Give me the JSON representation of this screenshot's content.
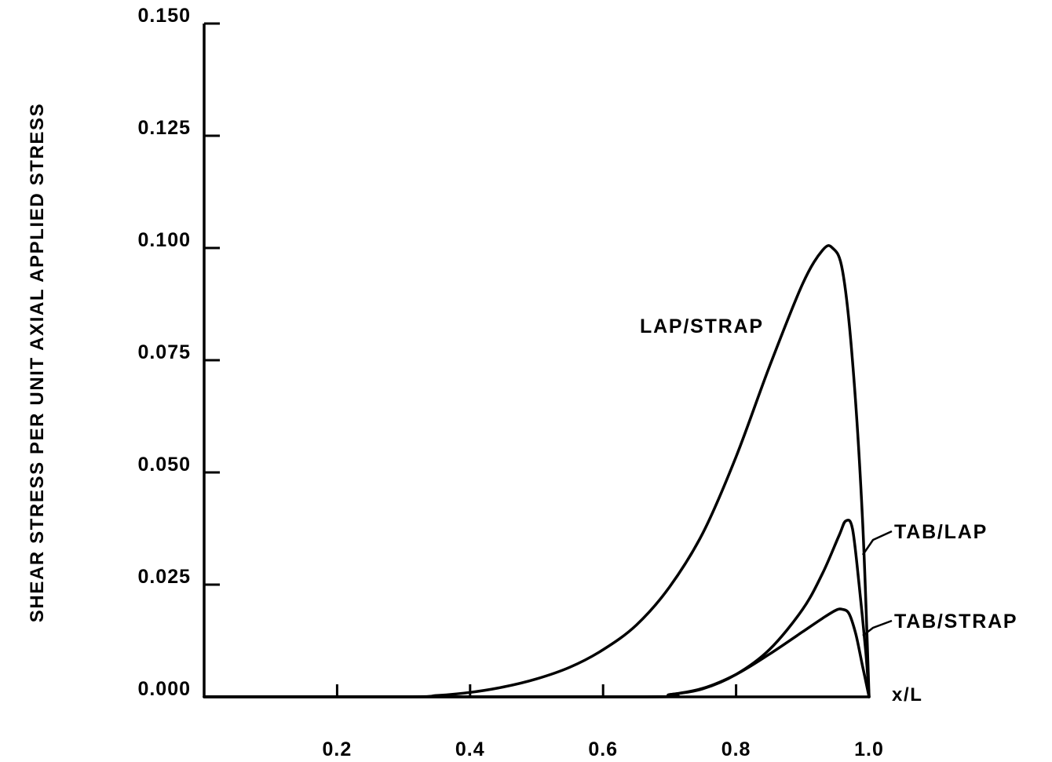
{
  "chart_data": {
    "type": "line",
    "title": "",
    "xlabel": "x/L",
    "ylabel": "SHEAR STRESS PER UNIT AXIAL APPLIED STRESS",
    "xlim": [
      0.0,
      1.0
    ],
    "ylim": [
      0.0,
      0.15
    ],
    "x_ticks": [
      0.2,
      0.4,
      0.6,
      0.8,
      1.0
    ],
    "x_tick_labels": [
      "0.2",
      "0.4",
      "0.6",
      "0.8",
      "1.0"
    ],
    "y_ticks": [
      0.0,
      0.025,
      0.05,
      0.075,
      0.1,
      0.125,
      0.15
    ],
    "y_tick_labels": [
      "0.000",
      "0.025",
      "0.050",
      "0.075",
      "0.100",
      "0.125",
      "0.150"
    ],
    "grid": false,
    "legend": "none (series labelled directly on curves)",
    "series": [
      {
        "name": "LAP/STRAP",
        "x": [
          0.0,
          0.3,
          0.35,
          0.4,
          0.45,
          0.5,
          0.55,
          0.6,
          0.65,
          0.7,
          0.75,
          0.8,
          0.85,
          0.9,
          0.93,
          0.945,
          0.96,
          0.975,
          0.99,
          1.0
        ],
        "y": [
          0.0,
          0.0,
          0.0003,
          0.001,
          0.0022,
          0.004,
          0.0066,
          0.0105,
          0.016,
          0.0245,
          0.0365,
          0.0535,
          0.0735,
          0.092,
          0.0995,
          0.1,
          0.095,
          0.075,
          0.04,
          0.0
        ]
      },
      {
        "name": "TAB/LAP",
        "x": [
          0.0,
          0.65,
          0.7,
          0.75,
          0.8,
          0.85,
          0.9,
          0.93,
          0.955,
          0.965,
          0.975,
          0.985,
          0.995,
          1.0
        ],
        "y": [
          0.0,
          0.0,
          0.0005,
          0.0018,
          0.005,
          0.0105,
          0.0195,
          0.0275,
          0.036,
          0.0392,
          0.0375,
          0.025,
          0.01,
          0.0
        ]
      },
      {
        "name": "TAB/STRAP",
        "x": [
          0.0,
          0.65,
          0.7,
          0.75,
          0.8,
          0.85,
          0.9,
          0.93,
          0.95,
          0.96,
          0.97,
          0.98,
          0.99,
          1.0
        ],
        "y": [
          0.0,
          0.0,
          0.0005,
          0.0019,
          0.005,
          0.0095,
          0.0145,
          0.0175,
          0.0193,
          0.0195,
          0.0185,
          0.014,
          0.007,
          0.0
        ]
      }
    ]
  }
}
